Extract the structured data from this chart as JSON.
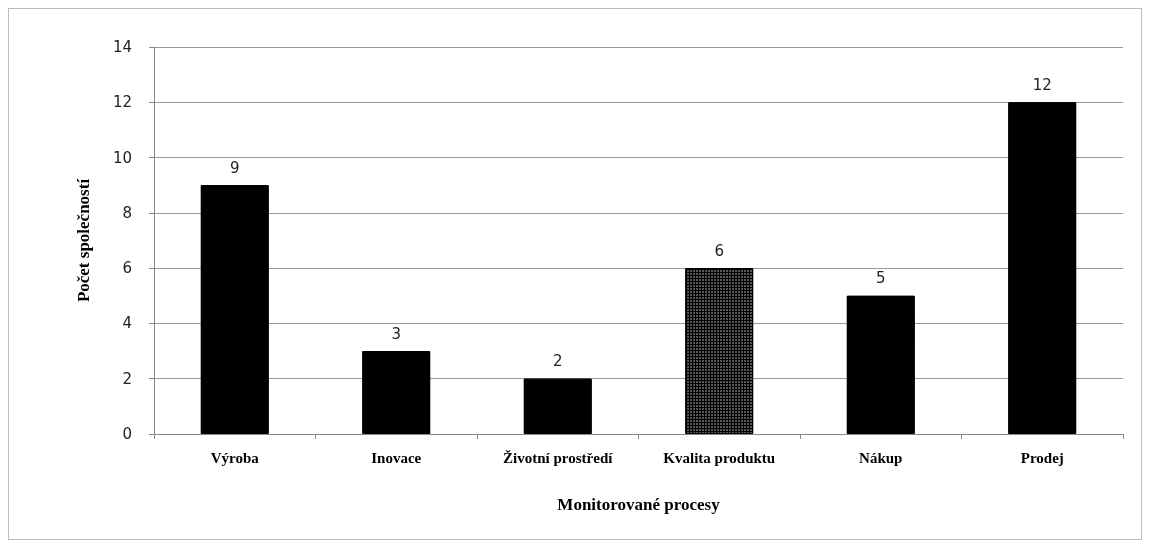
{
  "chart_data": {
    "type": "bar",
    "xlabel": "Monitorované procesy",
    "ylabel": "Počet společností",
    "categories": [
      "Výroba",
      "Inovace",
      "Životní prostředí",
      "Kvalita produktu",
      "Nákup",
      "Prodej"
    ],
    "values": [
      9,
      3,
      2,
      6,
      5,
      12
    ],
    "colors": [
      "#000000",
      "#000000",
      "#000000",
      "#000000",
      "#000000",
      "#000000"
    ],
    "ylim": [
      0,
      14
    ],
    "yticks": [
      0,
      2,
      4,
      6,
      8,
      10,
      12,
      14
    ],
    "grid": "y",
    "data_labels": true
  }
}
